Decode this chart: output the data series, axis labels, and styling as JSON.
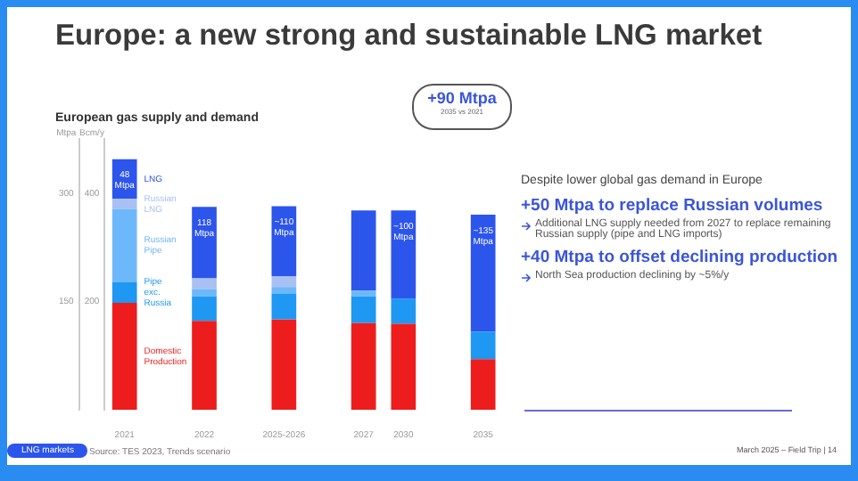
{
  "chart_data": {
    "type": "bar",
    "title": "Europe: a new strong and sustainable LNG market",
    "subtitle": "European gas supply and demand",
    "ylabel": "Mtpa",
    "y2label": "Bcm/y",
    "stacked": true,
    "categories": [
      "2021",
      null,
      "2022",
      null,
      "2025-2026",
      null,
      "2027",
      "2030",
      null,
      "2035"
    ],
    "series": [
      {
        "name": "Domestic Production",
        "color": "#ee1d1d",
        "values": [
          148,
          null,
          123,
          null,
          125,
          null,
          120,
          119,
          null,
          70
        ]
      },
      {
        "name": "Pipe exc. Russia",
        "color": "#1e98f2",
        "values": [
          29,
          null,
          34,
          null,
          36,
          null,
          37,
          35,
          null,
          38
        ]
      },
      {
        "name": "Russian Pipe",
        "color": "#6db8fa",
        "values": [
          101,
          null,
          10,
          null,
          9,
          null,
          8,
          null,
          null,
          null
        ]
      },
      {
        "name": "Russian LNG",
        "color": "#a9c0f2",
        "values": [
          14,
          null,
          15,
          null,
          15,
          null,
          null,
          null,
          null,
          null
        ]
      },
      {
        "name": "LNG",
        "color": "#2c55ec",
        "values": [
          55,
          null,
          99,
          null,
          97,
          null,
          111,
          122,
          null,
          162
        ]
      }
    ],
    "ylim": [
      0,
      375
    ],
    "yticks": [
      150,
      300
    ],
    "y2lim": [
      0,
      500
    ],
    "y2ticks": [
      200,
      400
    ],
    "grid": false,
    "legend": false,
    "annotations": [
      "48 Mtpa",
      "118 Mtpa",
      "~110 Mtpa",
      "~100 Mtpa",
      "~135 Mtpa",
      "+90 Mtpa",
      "2035 vs 2021",
      "Despite lower global gas demand in Europe",
      "+50 Mtpa to replace Russian volumes",
      "Additional LNG supply needed from 2027 to replace remaining Russian supply (pipe and LNG imports)",
      "+40 Mtpa to offset declining production",
      "North Sea production declining by ~5%/y",
      "LNG markets",
      "Source: TES 2023, Trends scenario",
      "March 2025 – Field Trip | 14"
    ]
  }
}
